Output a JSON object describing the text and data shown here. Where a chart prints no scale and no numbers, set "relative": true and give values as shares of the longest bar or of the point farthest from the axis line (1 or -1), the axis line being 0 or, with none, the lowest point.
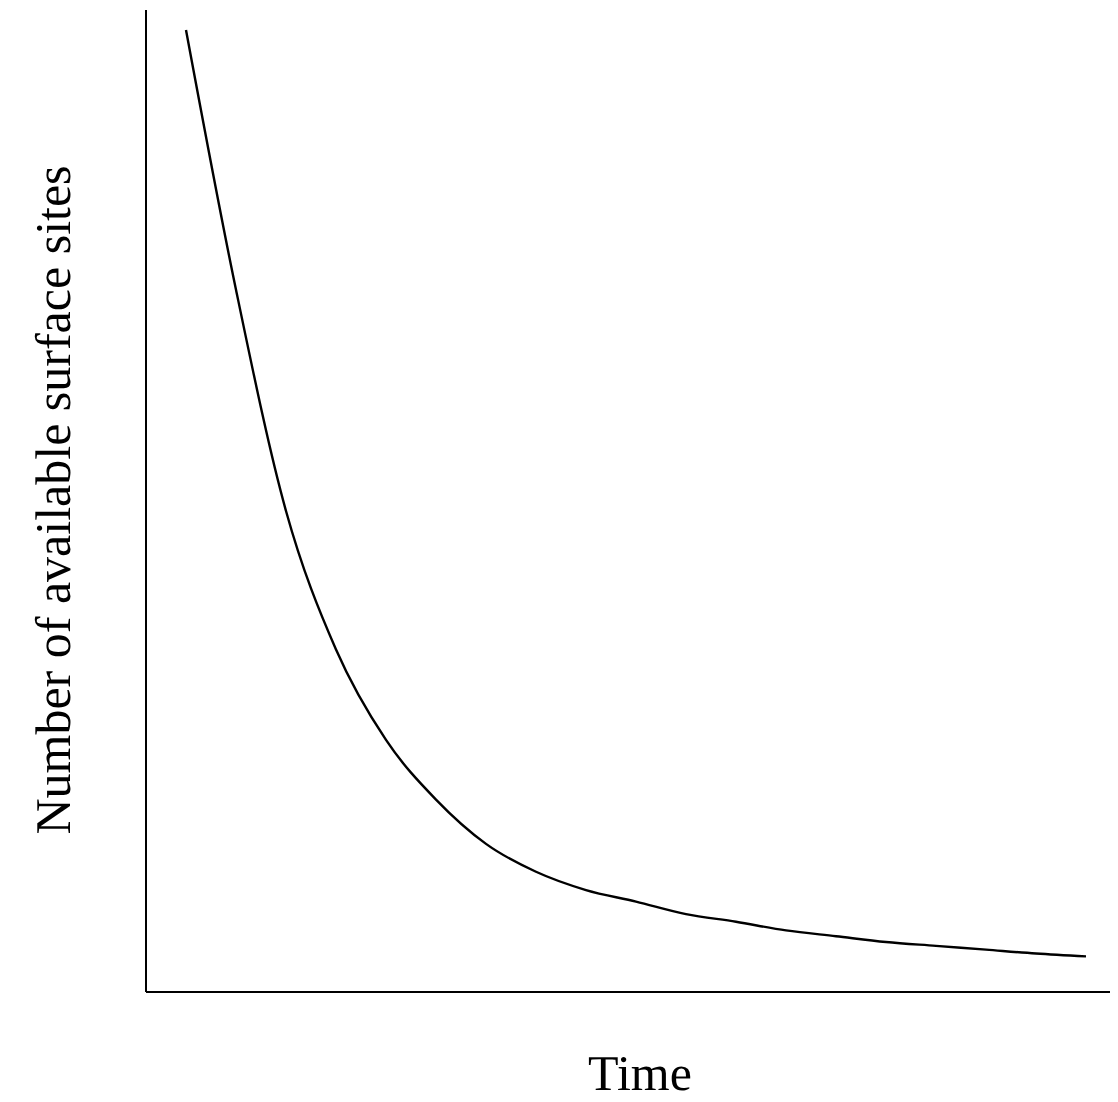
{
  "chart_data": {
    "type": "line",
    "relative": true,
    "xlabel": "Time",
    "ylabel": "Number of available surface sites",
    "categories": [
      null,
      null,
      null,
      null,
      null,
      null,
      null,
      null,
      null,
      null,
      null,
      null,
      null,
      null,
      null,
      null,
      null,
      null,
      null
    ],
    "series": [
      {
        "color": "#000000",
        "values": [
          1,
          0.73,
          0.5,
          0.356,
          0.262,
          0.2,
          0.154,
          0.125,
          0.106,
          0.094,
          0.081,
          0.073,
          0.064,
          0.058,
          0.052,
          0.048,
          0.044,
          0.04,
          0.037
        ]
      }
    ],
    "marker": "none",
    "line_style": "solid",
    "grid": false
  }
}
